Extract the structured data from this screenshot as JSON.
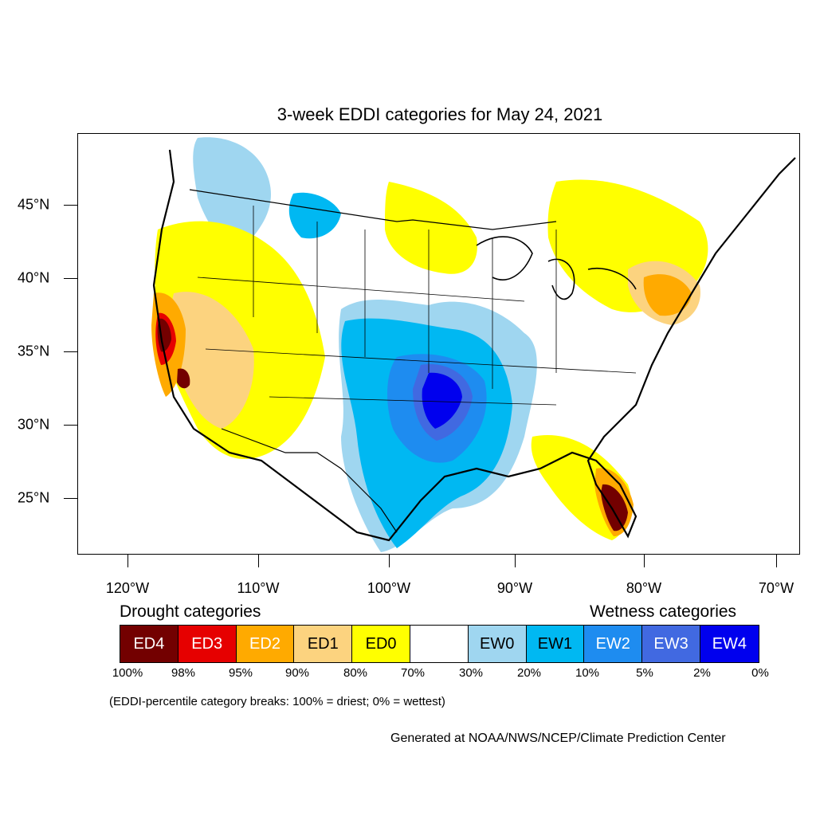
{
  "title": "3-week EDDI categories for May 24, 2021",
  "map": {
    "region": "Contiguous United States",
    "lat_labels": [
      "45°N",
      "40°N",
      "35°N",
      "30°N",
      "25°N"
    ],
    "lon_labels": [
      "120°W",
      "110°W",
      "100°W",
      "90°W",
      "80°W",
      "70°W"
    ]
  },
  "legend": {
    "drought_heading": "Drought categories",
    "wetness_heading": "Wetness categories",
    "categories": [
      {
        "label": "ED4",
        "color": "#730000",
        "text_color": "#ffffff"
      },
      {
        "label": "ED3",
        "color": "#e60000",
        "text_color": "#ffffff"
      },
      {
        "label": "ED2",
        "color": "#ffaa00",
        "text_color": "#ffffff"
      },
      {
        "label": "ED1",
        "color": "#fcd37f",
        "text_color": "#000000"
      },
      {
        "label": "ED0",
        "color": "#ffff00",
        "text_color": "#000000"
      },
      {
        "label": "",
        "color": "#ffffff",
        "text_color": "#000000"
      },
      {
        "label": "EW0",
        "color": "#9fd6f0",
        "text_color": "#000000"
      },
      {
        "label": "EW1",
        "color": "#00b8f2",
        "text_color": "#000000"
      },
      {
        "label": "EW2",
        "color": "#1e8cf0",
        "text_color": "#ffffff"
      },
      {
        "label": "EW3",
        "color": "#4169e1",
        "text_color": "#ffffff"
      },
      {
        "label": "EW4",
        "color": "#0000ee",
        "text_color": "#ffffff"
      }
    ],
    "breaks": [
      "100%",
      "98%",
      "95%",
      "90%",
      "80%",
      "70%",
      "30%",
      "20%",
      "10%",
      "5%",
      "2%",
      "0%"
    ]
  },
  "note": "(EDDI-percentile category breaks: 100% = driest; 0% = wettest)",
  "credit": "Generated at NOAA/NWS/NCEP/Climate Prediction Center"
}
